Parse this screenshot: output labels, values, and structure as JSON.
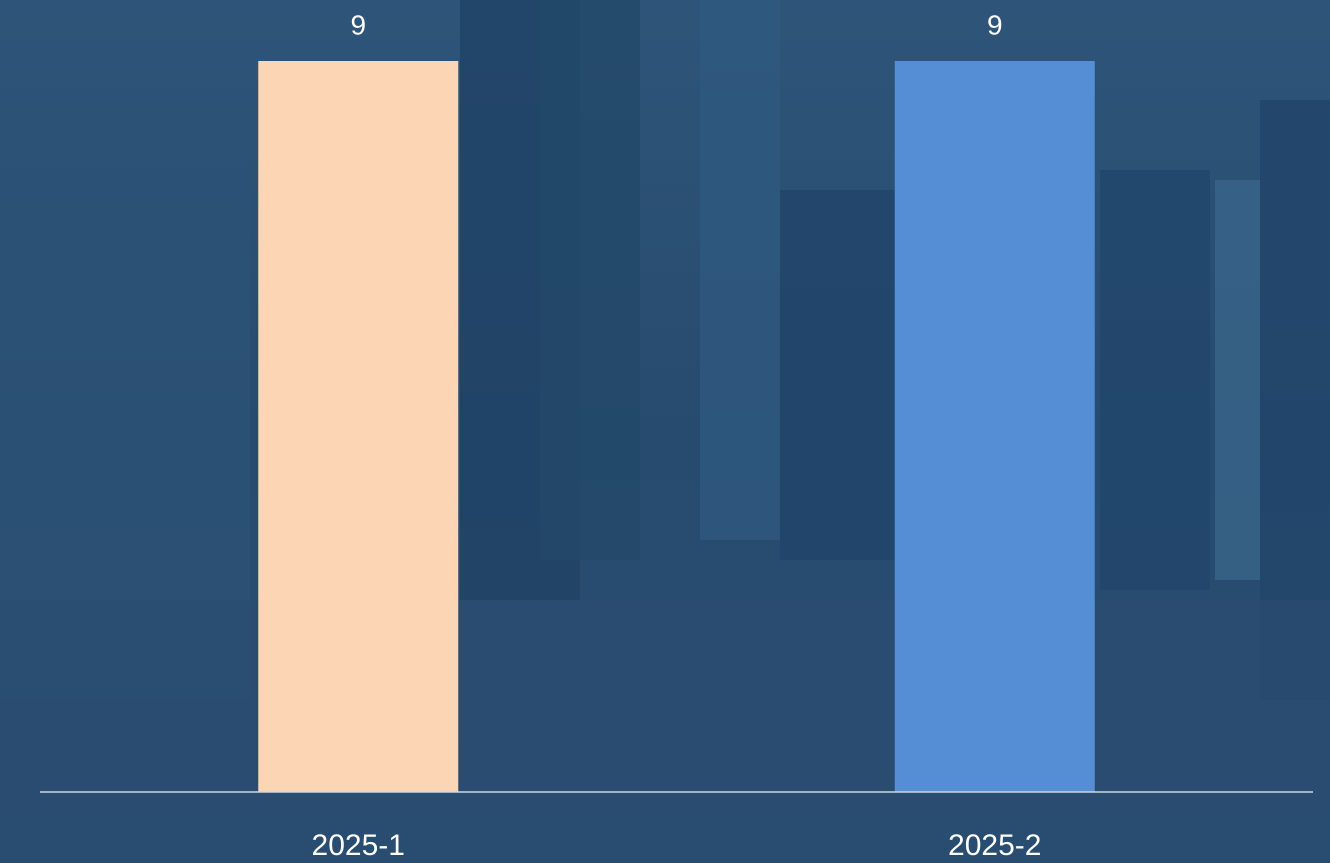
{
  "chart_data": {
    "type": "bar",
    "categories": [
      "2025-1",
      "2025-2"
    ],
    "values": [
      9,
      9
    ],
    "colors": [
      "#fcd5b4",
      "#558ed5"
    ]
  }
}
